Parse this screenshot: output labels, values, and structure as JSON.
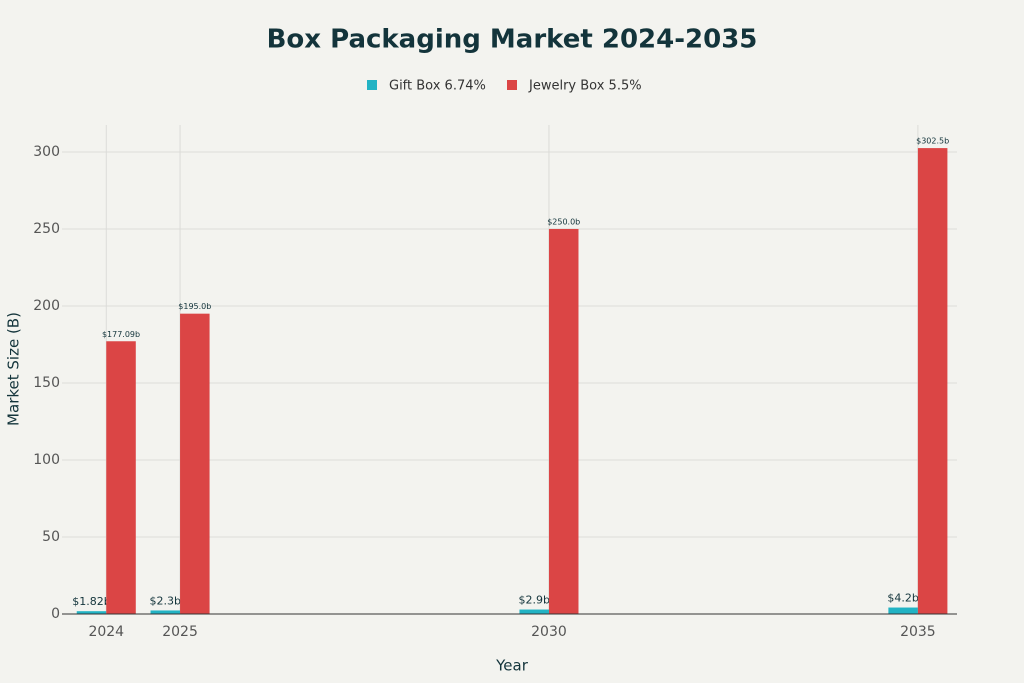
{
  "chart_data": {
    "type": "bar",
    "title": "Box Packaging Market 2024-2035",
    "x_label": "Year",
    "y_label": "Market Size (B)",
    "x": [
      2024,
      2025,
      2030,
      2035
    ],
    "xlim": [
      2023.4,
      2035.53
    ],
    "xticks": [
      2024,
      2025,
      2030,
      2035
    ],
    "ylim": [
      0,
      317.5
    ],
    "yticks": [
      0,
      50,
      100,
      150,
      200,
      250,
      300
    ],
    "grid": true,
    "legend": "top",
    "series": [
      {
        "name": "Gift Box 6.74%",
        "color": "#22b3c4",
        "values": [
          1.82,
          2.3,
          2.9,
          4.2
        ],
        "value_labels": [
          "$1.82b",
          "$2.3b",
          "$2.9b",
          "$4.2b"
        ]
      },
      {
        "name": "Jewelry Box 5.5%",
        "color": "#db4545",
        "values": [
          177.09,
          195.0,
          250.0,
          302.5
        ],
        "value_labels": [
          "$177.09b",
          "$195.0b",
          "$250.0b",
          "$302.5b"
        ]
      }
    ]
  }
}
